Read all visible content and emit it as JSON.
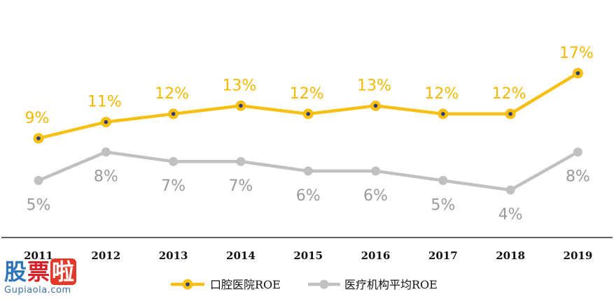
{
  "chart_data": {
    "type": "line",
    "categories": [
      "2011",
      "2012",
      "2013",
      "2014",
      "2015",
      "2016",
      "2017",
      "2018",
      "2019"
    ],
    "series": [
      {
        "name": "口腔医院ROE",
        "values": [
          9,
          11,
          12,
          13,
          12,
          13,
          12,
          12,
          17
        ],
        "labels": [
          "9%",
          "11%",
          "12%",
          "13%",
          "12%",
          "13%",
          "12%",
          "12%",
          "17%"
        ],
        "color": "#f5c011",
        "marker_center_color": "#2e3a7a"
      },
      {
        "name": "医疗机构平均ROE",
        "values": [
          5,
          8,
          7,
          7,
          6,
          6,
          5,
          4,
          8
        ],
        "labels": [
          "5%",
          "8%",
          "7%",
          "7%",
          "6%",
          "6%",
          "5%",
          "4%",
          "8%"
        ],
        "color": "#c0c0c0"
      }
    ],
    "legend_position": "bottom",
    "grid": false,
    "label_color_series1": "#f5b800",
    "label_color_series2": "#9a9a9a"
  },
  "watermark": {
    "main": [
      "股",
      "票",
      "啦"
    ],
    "sub": "Gupiaola.com"
  }
}
